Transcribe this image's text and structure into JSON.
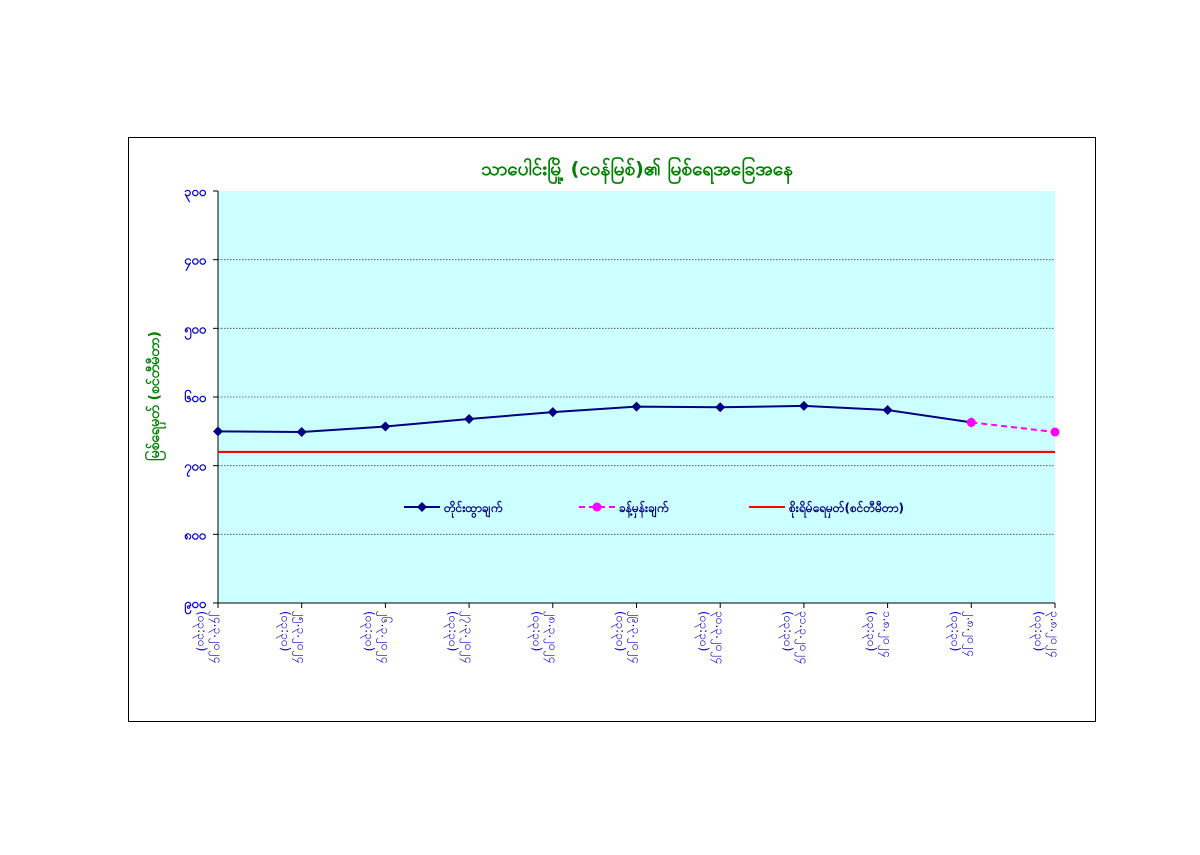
{
  "chart_data": {
    "type": "line",
    "title": "သာပေါင်းမြို့ (ငဝန်မြစ်)၏ မြစ်ရေအခြေအနေ",
    "ylabel": "မြစ်ရေမှတ် (စင်တီမီတာ)",
    "xlabel": "",
    "y_axis_inverted": true,
    "ylim": [
      900,
      300
    ],
    "yticks": [
      "၉၀၀",
      "၈၀၀",
      "၇၀၀",
      "၆၀၀",
      "၅၀၀",
      "၄၀၀",
      "၃၀၀"
    ],
    "ytick_values": [
      900,
      800,
      700,
      600,
      500,
      400,
      300
    ],
    "grid": true,
    "plot_background": "#ccffff",
    "categories": [
      [
        "၂၄.၃.၂၀၂၄",
        "(၀၃:၃၀)"
      ],
      [
        "၂၅.၃.၂၀၂၄",
        "(၀၃:၃၀)"
      ],
      [
        "၂၆.၃.၂၀၂၄",
        "(၀၃:၃၀)"
      ],
      [
        "၂၇.၃.၂၀၂၄",
        "(၀၃:၃၀)"
      ],
      [
        "၂၈.၃.၂၀၂၄",
        "(၀၃:၃၀)"
      ],
      [
        "၂၉.၃.၂၀၂၄",
        "(၀၃:၃၀)"
      ],
      [
        "၃၀.၃.၂၀၂၄",
        "(၀၃:၃၀)"
      ],
      [
        "၃၁.၃.၂၀၂၄",
        "(၀၃:၃၀)"
      ],
      [
        "၁.၈.၂၀၂၄",
        "(၀၃:၃၀)"
      ],
      [
        "၂.၈.၂၀၂၄",
        "(၀၃:၃၀)"
      ],
      [
        "၃.၈.၂၀၂၄",
        "(၀၃:၃၀)"
      ]
    ],
    "series": [
      {
        "name": "တိုင်းထွာချက်",
        "color": "#000080",
        "style": "solid",
        "marker": "diamond",
        "values": [
          650,
          651,
          643,
          632,
          622,
          614,
          615,
          613,
          619,
          637,
          null
        ]
      },
      {
        "name": "ခန့်မှန်းချက်",
        "color": "#ff00ff",
        "style": "dashed",
        "marker": "circle",
        "values": [
          null,
          null,
          null,
          null,
          null,
          null,
          null,
          null,
          null,
          637,
          651
        ]
      },
      {
        "name": "စိုးရိမ်ရေမှတ်(စင်တီမီတာ)",
        "color": "#ff0000",
        "style": "solid",
        "marker": "none",
        "values": [
          680,
          680,
          680,
          680,
          680,
          680,
          680,
          680,
          680,
          680,
          680
        ]
      }
    ],
    "legend_position": "inside-center"
  }
}
